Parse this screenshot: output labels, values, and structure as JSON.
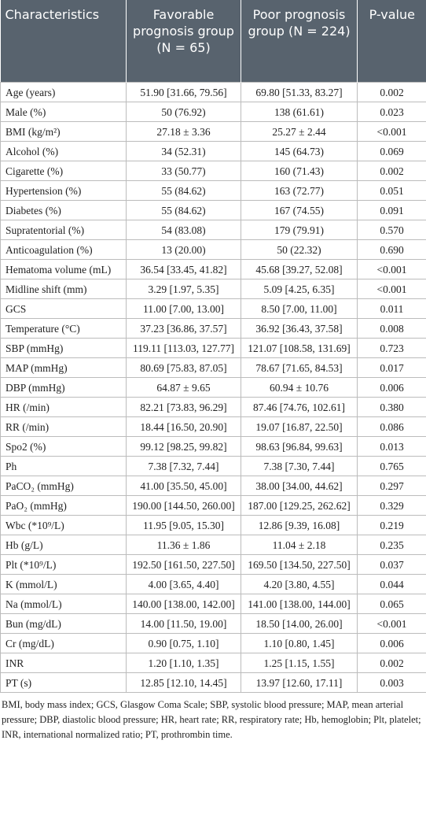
{
  "table": {
    "columns": [
      "Characteristics",
      "Favorable prognosis group (N = 65)",
      "Poor prognosis group (N = 224)",
      "P-value"
    ],
    "rows": [
      [
        "Age (years)",
        "51.90 [31.66, 79.56]",
        "69.80 [51.33, 83.27]",
        "0.002"
      ],
      [
        "Male (%)",
        "50 (76.92)",
        "138 (61.61)",
        "0.023"
      ],
      [
        "BMI (kg/m²)",
        "27.18 ± 3.36",
        "25.27 ± 2.44",
        "<0.001"
      ],
      [
        "Alcohol (%)",
        "34 (52.31)",
        "145 (64.73)",
        "0.069"
      ],
      [
        "Cigarette (%)",
        "33 (50.77)",
        "160 (71.43)",
        "0.002"
      ],
      [
        "Hypertension (%)",
        "55 (84.62)",
        "163 (72.77)",
        "0.051"
      ],
      [
        "Diabetes (%)",
        "55 (84.62)",
        "167 (74.55)",
        "0.091"
      ],
      [
        "Supratentorial (%)",
        "54 (83.08)",
        "179 (79.91)",
        "0.570"
      ],
      [
        "Anticoagulation (%)",
        "13 (20.00)",
        "50 (22.32)",
        "0.690"
      ],
      [
        "Hematoma volume (mL)",
        "36.54 [33.45, 41.82]",
        "45.68 [39.27, 52.08]",
        "<0.001"
      ],
      [
        "Midline shift (mm)",
        "3.29 [1.97, 5.35]",
        "5.09 [4.25, 6.35]",
        "<0.001"
      ],
      [
        "GCS",
        "11.00 [7.00, 13.00]",
        "8.50 [7.00, 11.00]",
        "0.011"
      ],
      [
        "Temperature (°C)",
        "37.23 [36.86, 37.57]",
        "36.92 [36.43, 37.58]",
        "0.008"
      ],
      [
        "SBP (mmHg)",
        "119.11 [113.03, 127.77]",
        "121.07 [108.58, 131.69]",
        "0.723"
      ],
      [
        "MAP (mmHg)",
        "80.69 [75.83, 87.05]",
        "78.67 [71.65, 84.53]",
        "0.017"
      ],
      [
        "DBP (mmHg)",
        "64.87 ± 9.65",
        "60.94 ± 10.76",
        "0.006"
      ],
      [
        "HR (/min)",
        "82.21 [73.83, 96.29]",
        "87.46 [74.76, 102.61]",
        "0.380"
      ],
      [
        "RR (/min)",
        "18.44 [16.50, 20.90]",
        "19.07 [16.87, 22.50]",
        "0.086"
      ],
      [
        "Spo2 (%)",
        "99.12 [98.25, 99.82]",
        "98.63 [96.84, 99.63]",
        "0.013"
      ],
      [
        "Ph",
        "7.38 [7.32, 7.44]",
        "7.38 [7.30, 7.44]",
        "0.765"
      ],
      [
        "PaCO₂ (mmHg)",
        "41.00 [35.50, 45.00]",
        "38.00 [34.00, 44.62]",
        "0.297"
      ],
      [
        "PaO₂ (mmHg)",
        "190.00 [144.50, 260.00]",
        "187.00 [129.25, 262.62]",
        "0.329"
      ],
      [
        "Wbc (*10⁹/L)",
        "11.95 [9.05, 15.30]",
        "12.86 [9.39, 16.08]",
        "0.219"
      ],
      [
        "Hb (g/L)",
        "11.36 ± 1.86",
        "11.04 ± 2.18",
        "0.235"
      ],
      [
        "Plt (*10⁹/L)",
        "192.50 [161.50, 227.50]",
        "169.50 [134.50, 227.50]",
        "0.037"
      ],
      [
        "K (mmol/L)",
        "4.00 [3.65, 4.40]",
        "4.20 [3.80, 4.55]",
        "0.044"
      ],
      [
        "Na (mmol/L)",
        "140.00 [138.00, 142.00]",
        "141.00 [138.00, 144.00]",
        "0.065"
      ],
      [
        "Bun (mg/dL)",
        "14.00 [11.50, 19.00]",
        "18.50 [14.00, 26.00]",
        "<0.001"
      ],
      [
        "Cr (mg/dL)",
        "0.90 [0.75, 1.10]",
        "1.10 [0.80, 1.45]",
        "0.006"
      ],
      [
        "INR",
        "1.20 [1.10, 1.35]",
        "1.25 [1.15, 1.55]",
        "0.002"
      ],
      [
        "PT (s)",
        "12.85 [12.10, 14.45]",
        "13.97 [12.60, 17.11]",
        "0.003"
      ]
    ]
  },
  "footnote": "BMI, body mass index; GCS, Glasgow Coma Scale; SBP, systolic blood pressure; MAP, mean arterial pressure; DBP, diastolic blood pressure; HR, heart rate; RR, respiratory rate; Hb, hemoglobin; Plt, platelet; INR, international normalized ratio; PT, prothrombin time."
}
